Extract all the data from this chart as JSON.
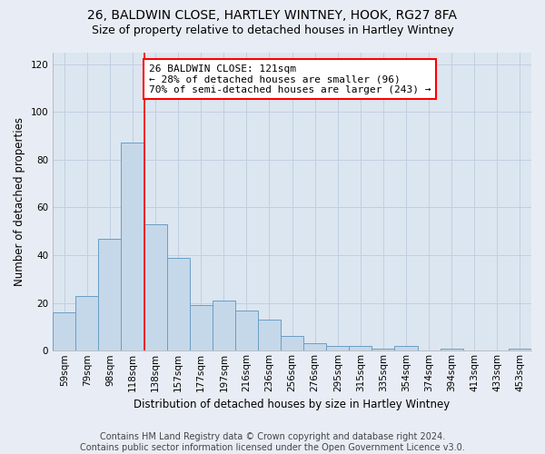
{
  "title": "26, BALDWIN CLOSE, HARTLEY WINTNEY, HOOK, RG27 8FA",
  "subtitle": "Size of property relative to detached houses in Hartley Wintney",
  "xlabel": "Distribution of detached houses by size in Hartley Wintney",
  "ylabel": "Number of detached properties",
  "bar_values": [
    16,
    23,
    47,
    87,
    53,
    39,
    19,
    21,
    17,
    13,
    6,
    3,
    2,
    2,
    1,
    2,
    0,
    1,
    0,
    0,
    1
  ],
  "tick_labels": [
    "59sqm",
    "79sqm",
    "98sqm",
    "118sqm",
    "138sqm",
    "157sqm",
    "177sqm",
    "197sqm",
    "216sqm",
    "236sqm",
    "256sqm",
    "276sqm",
    "295sqm",
    "315sqm",
    "335sqm",
    "354sqm",
    "374sqm",
    "394sqm",
    "413sqm",
    "433sqm",
    "453sqm"
  ],
  "bar_color": "#c5d8ea",
  "bar_edge_color": "#6a9ec4",
  "bar_edge_width": 0.7,
  "grid_color": "#c0cfe0",
  "background_color": "#e8edf5",
  "plot_bg_color": "#dce6f0",
  "vline_x": 3.5,
  "vline_color": "red",
  "vline_linewidth": 1.2,
  "annotation_text": "26 BALDWIN CLOSE: 121sqm\n← 28% of detached houses are smaller (96)\n70% of semi-detached houses are larger (243) →",
  "annotation_box_color": "white",
  "annotation_box_edge_color": "red",
  "ylim": [
    0,
    125
  ],
  "yticks": [
    0,
    20,
    40,
    60,
    80,
    100,
    120
  ],
  "footer": "Contains HM Land Registry data © Crown copyright and database right 2024.\nContains public sector information licensed under the Open Government Licence v3.0.",
  "title_fontsize": 10,
  "subtitle_fontsize": 9,
  "axis_label_fontsize": 8.5,
  "tick_fontsize": 7.5,
  "annotation_fontsize": 8,
  "footer_fontsize": 7
}
